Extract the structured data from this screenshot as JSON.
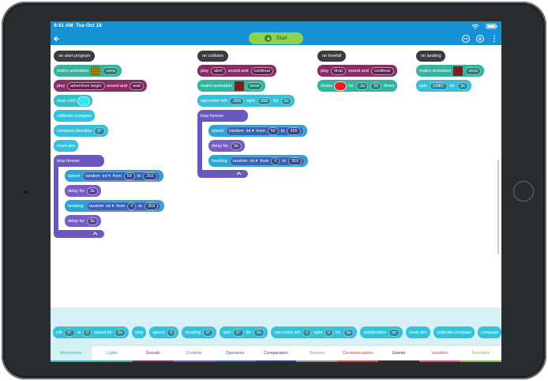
{
  "status_bar": {
    "time": "9:41 AM",
    "date": "Tue Oct 18"
  },
  "header": {
    "start": "Start"
  },
  "scripts": [
    {
      "event": "on start program",
      "blocks": [
        {
          "color": "#2fb5a0",
          "parts": [
            "matrix animation",
            {
              "matrix": "#f2d31b"
            },
            {
              "field": "once"
            }
          ]
        },
        {
          "color": "#8a2c68",
          "parts": [
            "play",
            {
              "field": "adventure begin"
            },
            "sound and",
            {
              "field": "wait"
            }
          ]
        },
        {
          "color": "#2fc0c9",
          "parts": [
            "main LED",
            {
              "swatch": "#2ee8f5"
            }
          ]
        },
        {
          "color": "#35c1dc",
          "parts": [
            "calibrate compass"
          ]
        },
        {
          "color": "#35c1dc",
          "parts": [
            "compass direction",
            {
              "field": "0°"
            }
          ]
        },
        {
          "color": "#35c1dc",
          "parts": [
            "reset aim"
          ]
        },
        {
          "loop": "loop forever",
          "color": "#6b58bf",
          "body": [
            {
              "color": "#2ba4d8",
              "parts": [
                "speed",
                {
                  "color": "#3a63b5",
                  "parts": [
                    "random",
                    "int ▾",
                    "from",
                    {
                      "field": "50"
                    },
                    "to",
                    {
                      "field": "255"
                    }
                  ]
                }
              ]
            },
            {
              "color": "#7a5cc7",
              "parts": [
                "delay for",
                {
                  "field": "3s"
                }
              ]
            },
            {
              "color": "#2ba4d8",
              "parts": [
                "heading",
                {
                  "color": "#3a63b5",
                  "parts": [
                    "random",
                    "int ▾",
                    "from",
                    {
                      "field": "0"
                    },
                    "to",
                    {
                      "field": "359"
                    }
                  ]
                }
              ]
            },
            {
              "color": "#7a5cc7",
              "parts": [
                "delay for",
                {
                  "field": "3s"
                }
              ]
            }
          ]
        }
      ]
    },
    {
      "event": "on collision",
      "blocks": [
        {
          "color": "#8a2c68",
          "parts": [
            "play",
            {
              "field": "alert"
            },
            "sound and",
            {
              "field": "continue"
            }
          ]
        },
        {
          "color": "#2fb5a0",
          "parts": [
            "matrix animation",
            {
              "matrix": "#d8352c"
            },
            {
              "field": "once"
            }
          ]
        },
        {
          "color": "#35c1dc",
          "parts": [
            "raw motor left",
            {
              "field": "-255"
            },
            "right",
            {
              "field": "255"
            },
            "for",
            {
              "field": "2s"
            }
          ]
        },
        {
          "loop": "loop forever",
          "color": "#6b58bf",
          "body": [
            {
              "color": "#2ba4d8",
              "parts": [
                "speed",
                {
                  "color": "#3a63b5",
                  "parts": [
                    "random",
                    "int ▾",
                    "from",
                    {
                      "field": "50"
                    },
                    "to",
                    {
                      "field": "255"
                    }
                  ]
                }
              ]
            },
            {
              "color": "#7a5cc7",
              "parts": [
                "delay for",
                {
                  "field": "3s"
                }
              ]
            },
            {
              "color": "#2ba4d8",
              "parts": [
                "heading",
                {
                  "color": "#3a63b5",
                  "parts": [
                    "random",
                    "int ▾",
                    "from",
                    {
                      "field": "0"
                    },
                    "to",
                    {
                      "field": "359"
                    }
                  ]
                }
              ]
            }
          ]
        }
      ]
    },
    {
      "event": "on freefall",
      "blocks": [
        {
          "color": "#8a2c68",
          "parts": [
            "play",
            {
              "field": "drop"
            },
            "sound and",
            {
              "field": "continue"
            }
          ]
        },
        {
          "color": "#2fb5a0",
          "parts": [
            "strobe",
            {
              "swatch": "#ee1c24"
            },
            "for",
            {
              "field": ".2s"
            },
            {
              "field": "20"
            },
            "times"
          ]
        }
      ]
    },
    {
      "event": "on landing",
      "blocks": [
        {
          "color": "#2fb5a0",
          "parts": [
            "matrix animation",
            {
              "matrix": "#d8352c"
            },
            {
              "field": "once"
            }
          ]
        },
        {
          "color": "#35c1dc",
          "parts": [
            "spin",
            {
              "field": "1080°"
            },
            "for",
            {
              "field": "3s"
            }
          ]
        }
      ]
    }
  ],
  "palette": [
    {
      "color": "#35c1dc",
      "parts": [
        "roll",
        {
          "field": "0°"
        },
        "at",
        {
          "field": "0"
        },
        "speed for",
        {
          "field": "0s"
        }
      ]
    },
    {
      "color": "#35c1dc",
      "parts": [
        "stop"
      ]
    },
    {
      "color": "#35c1dc",
      "parts": [
        "speed",
        {
          "field": "0"
        }
      ]
    },
    {
      "color": "#35c1dc",
      "parts": [
        "heading",
        {
          "field": "0°"
        }
      ]
    },
    {
      "color": "#35c1dc",
      "parts": [
        "spin",
        {
          "field": "0°"
        },
        "for",
        {
          "field": "0s"
        }
      ]
    },
    {
      "color": "#35c1dc",
      "parts": [
        "raw motor left",
        {
          "field": "0"
        },
        "right",
        {
          "field": "0"
        },
        "for",
        {
          "field": "0s"
        }
      ]
    },
    {
      "color": "#35c1dc",
      "parts": [
        "stabilization",
        {
          "field": "on"
        }
      ]
    },
    {
      "color": "#35c1dc",
      "parts": [
        "reset aim"
      ]
    },
    {
      "color": "#35c1dc",
      "parts": [
        "calibrate compass"
      ]
    },
    {
      "color": "#35c1dc",
      "parts": [
        "compass"
      ]
    }
  ],
  "tabs": [
    {
      "label": "Movements",
      "color": "#27b7d3"
    },
    {
      "label": "Lights",
      "color": "#2fb5a0"
    },
    {
      "label": "Sounds",
      "color": "#8a2c68"
    },
    {
      "label": "Controls",
      "color": "#7a5cc7"
    },
    {
      "label": "Operators",
      "color": "#3a63b5"
    },
    {
      "label": "Comparators",
      "color": "#2d3f8f"
    },
    {
      "label": "Sensors",
      "color": "#8a8f98"
    },
    {
      "label": "Communications",
      "color": "#e0413a"
    },
    {
      "label": "Events",
      "color": "#333333"
    },
    {
      "label": "Variables",
      "color": "#e04a7a"
    },
    {
      "label": "Functions",
      "color": "#7cc441"
    }
  ],
  "active_tab": 0
}
